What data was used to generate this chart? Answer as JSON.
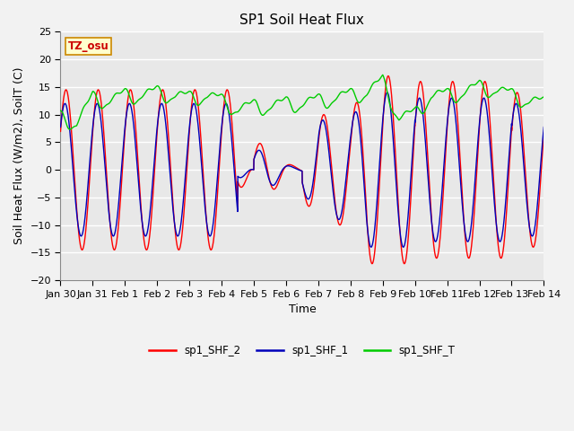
{
  "title": "SP1 Soil Heat Flux",
  "xlabel": "Time",
  "ylabel": "Soil Heat Flux (W/m2), SoilT (C)",
  "ylim": [
    -20,
    25
  ],
  "xlim": [
    0,
    15
  ],
  "xtick_labels": [
    "Jan 30",
    "Jan 31",
    "Feb 1",
    "Feb 2",
    "Feb 3",
    "Feb 4",
    "Feb 5",
    "Feb 6",
    "Feb 7",
    "Feb 8",
    "Feb 9",
    "Feb 10",
    "Feb 11",
    "Feb 12",
    "Feb 13",
    "Feb 14"
  ],
  "xtick_positions": [
    0,
    1,
    2,
    3,
    4,
    5,
    6,
    7,
    8,
    9,
    10,
    11,
    12,
    13,
    14,
    15
  ],
  "ytick_positions": [
    -20,
    -15,
    -10,
    -5,
    0,
    5,
    10,
    15,
    20,
    25
  ],
  "line_colors": {
    "sp1_SHF_2": "#ff0000",
    "sp1_SHF_1": "#0000bb",
    "sp1_SHF_T": "#00cc00"
  },
  "legend_labels": [
    "sp1_SHF_2",
    "sp1_SHF_1",
    "sp1_SHF_T"
  ],
  "annotation_text": "TZ_osu",
  "annotation_color": "#cc0000",
  "annotation_bg": "#ffffcc",
  "annotation_border": "#cc8800",
  "axes_bg": "#e8e8e8",
  "fig_bg": "#f2f2f2",
  "grid_color": "#ffffff",
  "title_fontsize": 11,
  "label_fontsize": 9,
  "tick_fontsize": 8
}
